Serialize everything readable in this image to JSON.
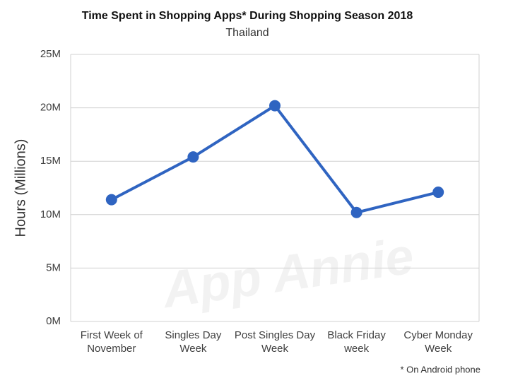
{
  "chart_data": {
    "type": "line",
    "title": "Time Spent in Shopping Apps* During Shopping Season 2018",
    "subtitle": "Thailand",
    "y_label": "Hours (Millions)",
    "footnote": "* On Android phone",
    "watermark": "App Annie",
    "categories": [
      "First Week of November",
      "Singles Day Week",
      "Post Singles Day Week",
      "Black Friday week",
      "Cyber Monday Week"
    ],
    "series": [
      {
        "name": "Time Spent",
        "color": "#2f64c1",
        "values": [
          11.4,
          15.4,
          20.2,
          10.2,
          12.1
        ]
      }
    ],
    "ylim": [
      0,
      25
    ],
    "yticks": [
      {
        "value": 0,
        "label": "0M"
      },
      {
        "value": 5,
        "label": "5M"
      },
      {
        "value": 10,
        "label": "10M"
      },
      {
        "value": 15,
        "label": "15M"
      },
      {
        "value": 20,
        "label": "20M"
      },
      {
        "value": 25,
        "label": "25M"
      }
    ],
    "grid": true
  }
}
